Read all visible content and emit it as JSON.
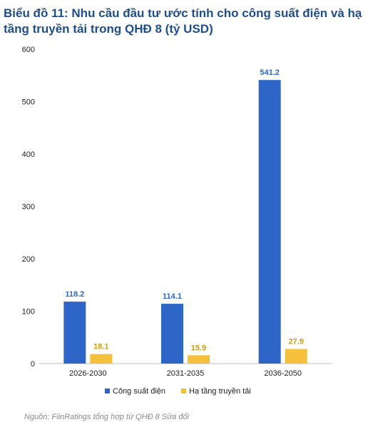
{
  "title": "Biểu đồ 11: Nhu cầu đầu tư ước tính cho công suất điện và hạ tầng truyền tải trong QHĐ 8 (tỷ USD)",
  "source": "Nguồn: FiinRatings tổng hợp từ QHĐ 8 Sửa đổi",
  "colors": {
    "series1": "#2e66c7",
    "series2": "#f5c03b",
    "axis": "#bfbfbf",
    "text": "#222222",
    "label1": "#2e66c7",
    "label2": "#d49b0b"
  },
  "chart_data": {
    "type": "bar",
    "categories": [
      "2026-2030",
      "2031-2035",
      "2036-2050"
    ],
    "series": [
      {
        "name": "Công suất điện",
        "values": [
          118.2,
          114.1,
          541.2
        ]
      },
      {
        "name": "Hạ tầng truyền tải",
        "values": [
          18.1,
          15.9,
          27.9
        ]
      }
    ],
    "ylim": [
      0,
      600
    ],
    "yticks": [
      0,
      100,
      200,
      300,
      400,
      500,
      600
    ],
    "grid": false,
    "legend": "bottom"
  }
}
